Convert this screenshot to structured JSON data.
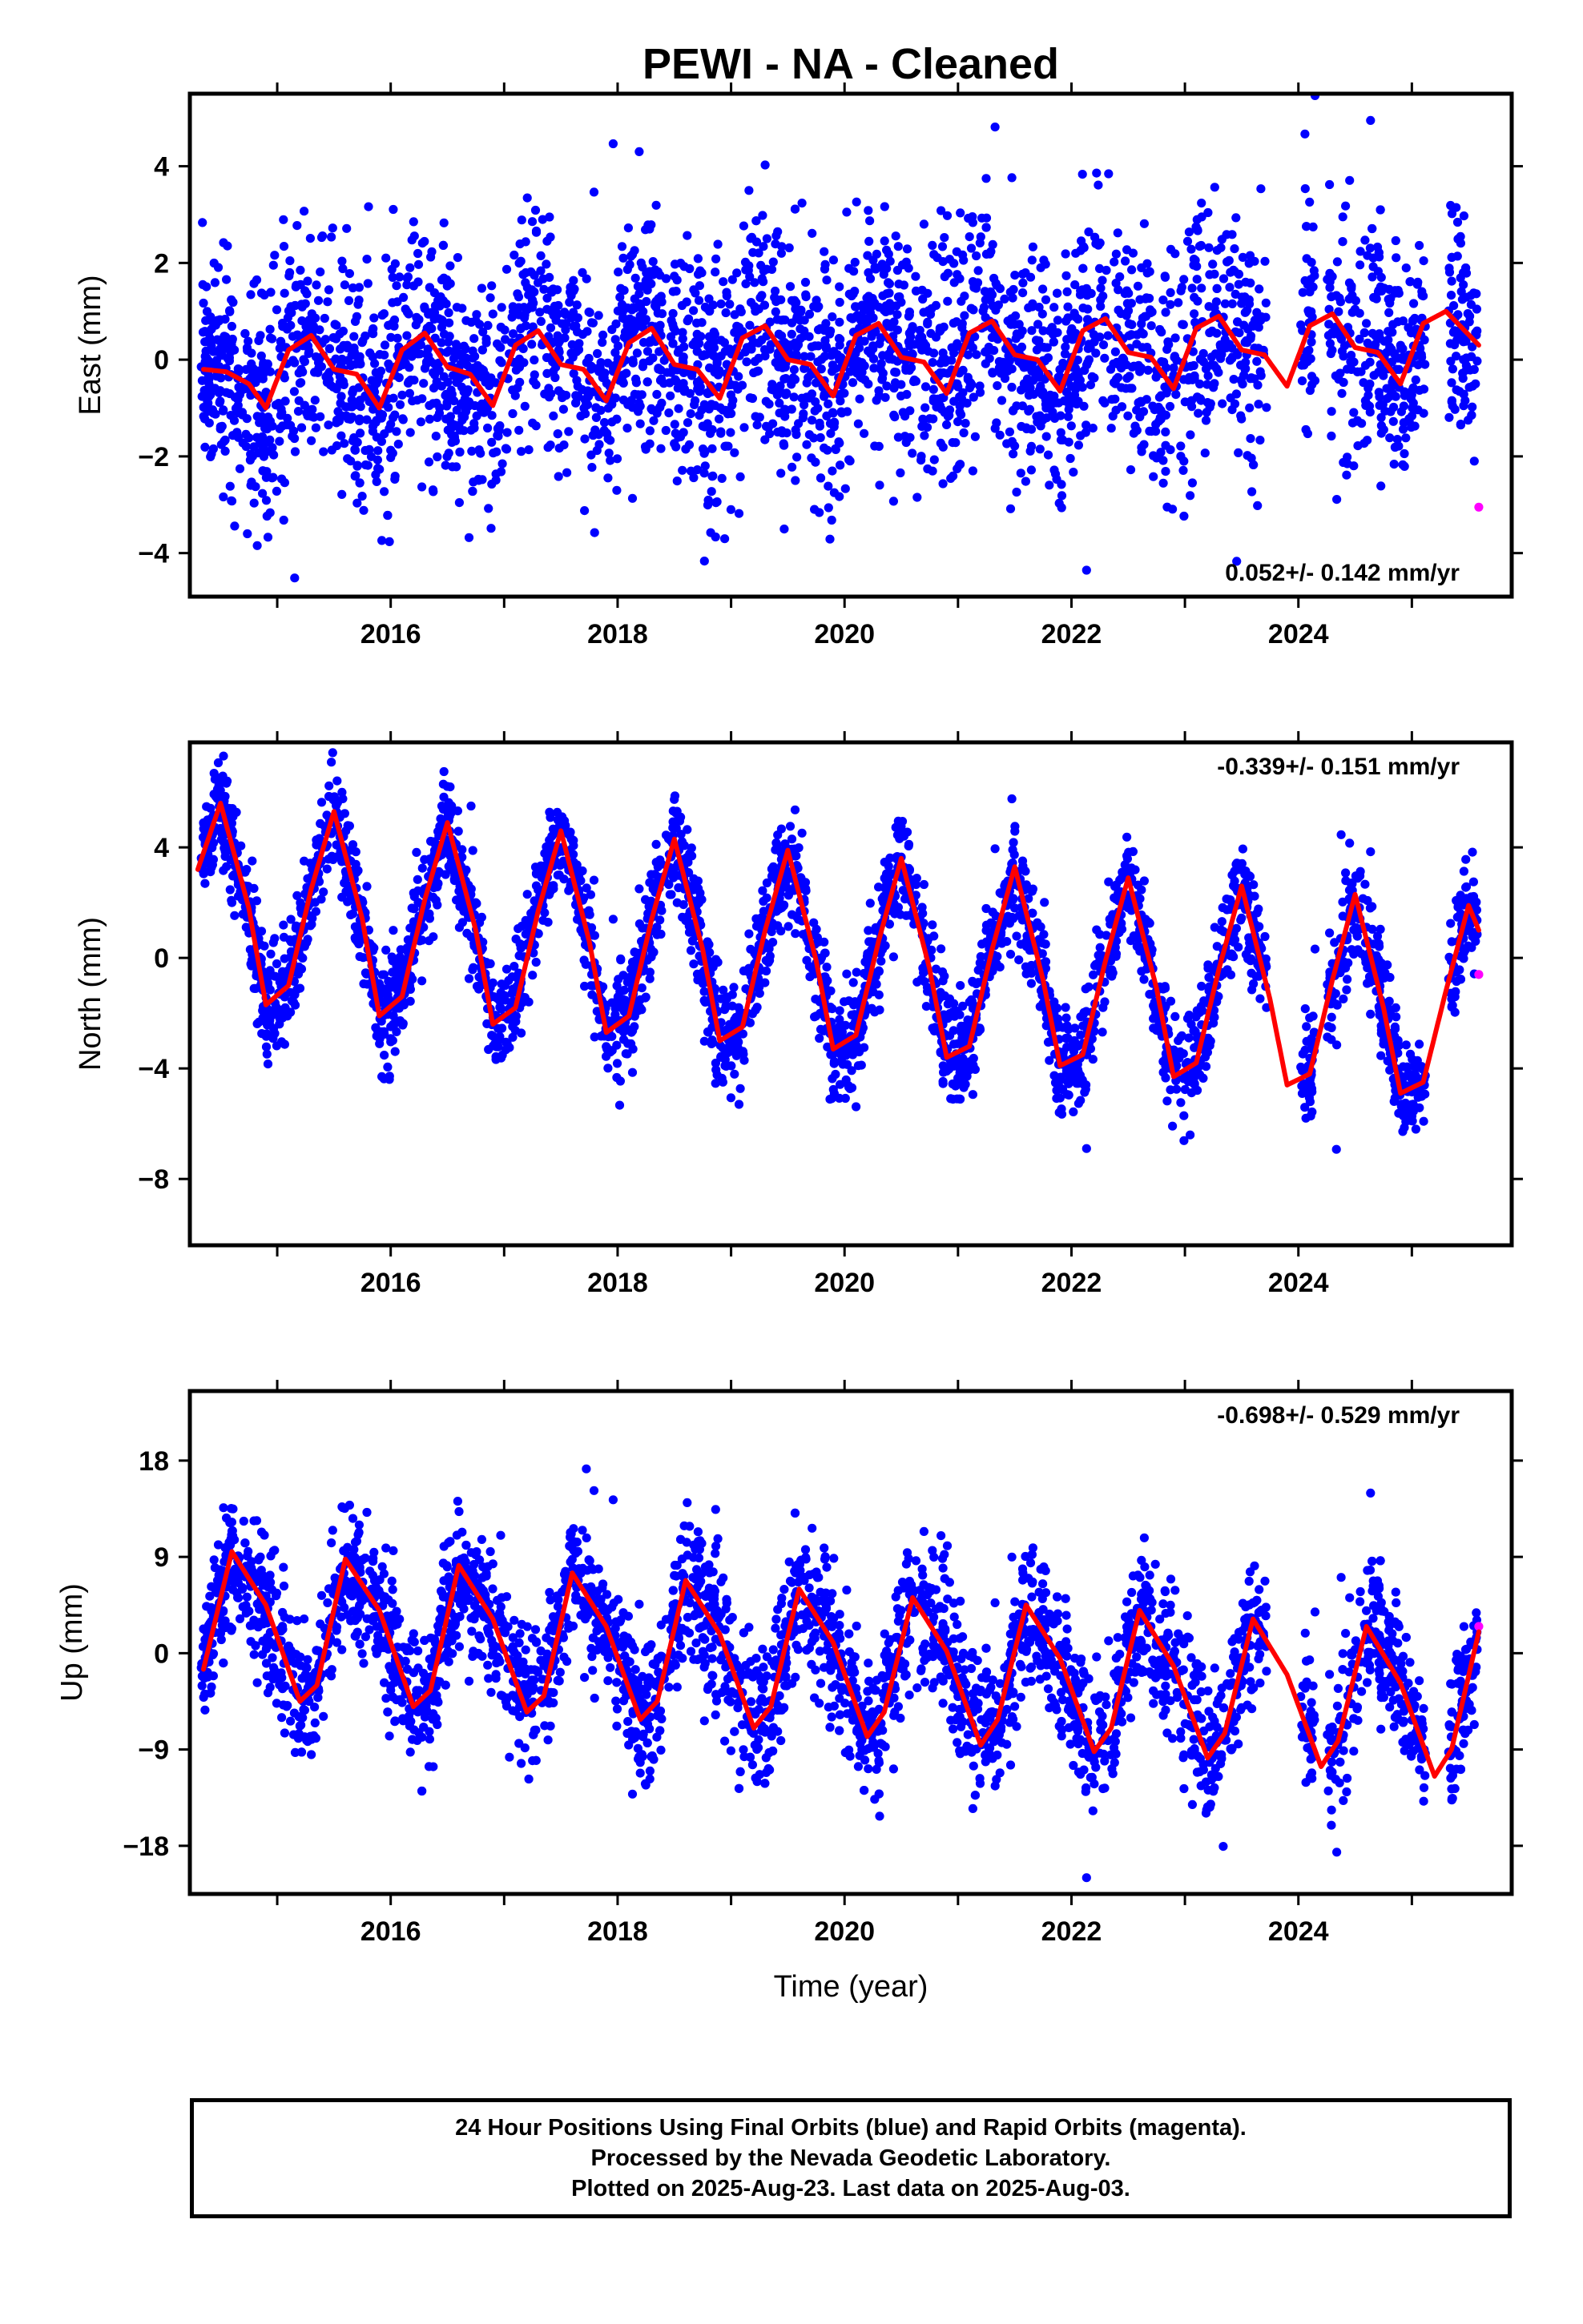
{
  "title": "PEWI  - NA - Cleaned",
  "colors": {
    "final_orbits": "#0000ff",
    "rapid_orbits": "#ff00ff",
    "model_fit": "#ff0000",
    "frame": "#000000"
  },
  "x_axis": {
    "label": "Time (year)",
    "range": [
      2014.23,
      2025.88
    ],
    "major_ticks": [
      2016,
      2018,
      2020,
      2022,
      2024
    ],
    "minor_ticks": [
      2015,
      2016,
      2017,
      2018,
      2019,
      2020,
      2021,
      2022,
      2023,
      2024,
      2025
    ]
  },
  "chart_data": [
    {
      "type": "scatter",
      "component": "east",
      "ylabel": "East (mm)",
      "ylim": [
        -4.9,
        5.5
      ],
      "yticks": [
        -4,
        -2,
        0,
        2,
        4
      ],
      "rate_label": "0.052+/- 0.142 mm/yr",
      "rate_position": "bottom-right",
      "series": [
        {
          "name": "Final Orbits",
          "style": "points",
          "noise_sd": 1.2,
          "n": 3600
        },
        {
          "name": "Rapid Orbits",
          "style": "points",
          "points": [
            [
              2025.59,
              -3.05
            ]
          ]
        },
        {
          "name": "Model fit",
          "style": "line",
          "x": [
            2014.35,
            2014.55,
            2014.75,
            2014.9,
            2015.1,
            2015.3,
            2015.5,
            2015.7,
            2015.9,
            2016.1,
            2016.3,
            2016.5,
            2016.7,
            2016.9,
            2017.1,
            2017.3,
            2017.5,
            2017.7,
            2017.9,
            2018.1,
            2018.3,
            2018.5,
            2018.7,
            2018.9,
            2019.1,
            2019.3,
            2019.5,
            2019.7,
            2019.9,
            2020.1,
            2020.3,
            2020.5,
            2020.7,
            2020.9,
            2021.1,
            2021.3,
            2021.5,
            2021.7,
            2021.9,
            2022.1,
            2022.3,
            2022.5,
            2022.7,
            2022.9,
            2023.1,
            2023.3,
            2023.5,
            2023.7,
            2023.9,
            2024.1,
            2024.3,
            2024.5,
            2024.7,
            2024.9,
            2025.1,
            2025.3,
            2025.59
          ],
          "y": [
            -0.2,
            -0.25,
            -0.5,
            -1.0,
            0.2,
            0.5,
            -0.2,
            -0.3,
            -1.0,
            0.2,
            0.55,
            -0.15,
            -0.3,
            -0.95,
            0.3,
            0.6,
            -0.1,
            -0.2,
            -0.85,
            0.35,
            0.65,
            -0.1,
            -0.2,
            -0.8,
            0.45,
            0.7,
            0.0,
            -0.1,
            -0.75,
            0.5,
            0.75,
            0.05,
            -0.05,
            -0.7,
            0.55,
            0.8,
            0.1,
            0.0,
            -0.65,
            0.6,
            0.85,
            0.15,
            0.05,
            -0.6,
            0.65,
            0.9,
            0.2,
            0.1,
            -0.55,
            0.7,
            0.95,
            0.25,
            0.15,
            -0.5,
            0.75,
            1.0,
            0.3
          ]
        }
      ]
    },
    {
      "type": "scatter",
      "component": "north",
      "ylabel": "North (mm)",
      "ylim": [
        -10.4,
        7.8
      ],
      "yticks": [
        -8,
        -4,
        0,
        4
      ],
      "rate_label": "-0.339+/- 0.151 mm/yr",
      "rate_position": "top-right",
      "series": [
        {
          "name": "Final Orbits",
          "style": "points",
          "noise_sd": 0.95,
          "n": 3600
        },
        {
          "name": "Rapid Orbits",
          "style": "points",
          "points": [
            [
              2025.59,
              -0.6
            ]
          ]
        },
        {
          "name": "Model fit",
          "style": "line",
          "x": [
            2014.3,
            2014.5,
            2014.75,
            2014.9,
            2015.1,
            2015.3,
            2015.5,
            2015.75,
            2015.9,
            2016.1,
            2016.3,
            2016.5,
            2016.75,
            2016.9,
            2017.1,
            2017.3,
            2017.5,
            2017.75,
            2017.9,
            2018.1,
            2018.3,
            2018.5,
            2018.75,
            2018.9,
            2019.1,
            2019.3,
            2019.5,
            2019.75,
            2019.9,
            2020.1,
            2020.3,
            2020.5,
            2020.75,
            2020.9,
            2021.1,
            2021.3,
            2021.5,
            2021.75,
            2021.9,
            2022.1,
            2022.3,
            2022.5,
            2022.75,
            2022.9,
            2023.1,
            2023.3,
            2023.5,
            2023.75,
            2023.9,
            2024.1,
            2024.3,
            2024.5,
            2024.75,
            2024.9,
            2025.1,
            2025.3,
            2025.5,
            2025.59
          ],
          "y": [
            3.2,
            5.6,
            1.8,
            -1.7,
            -1.0,
            2.5,
            5.3,
            1.4,
            -2.1,
            -1.4,
            2.1,
            4.9,
            1.0,
            -2.4,
            -1.8,
            1.7,
            4.6,
            0.6,
            -2.7,
            -2.1,
            1.4,
            4.3,
            0.3,
            -3.0,
            -2.5,
            1.0,
            3.9,
            -0.1,
            -3.3,
            -2.8,
            0.6,
            3.6,
            -0.4,
            -3.6,
            -3.2,
            0.3,
            3.3,
            -0.8,
            -3.9,
            -3.5,
            -0.1,
            2.9,
            -1.1,
            -4.3,
            -3.8,
            -0.4,
            2.6,
            -1.5,
            -4.6,
            -4.2,
            -0.8,
            2.3,
            -1.8,
            -4.9,
            -4.5,
            -1.2,
            1.9,
            1.0
          ]
        }
      ]
    },
    {
      "type": "scatter",
      "component": "up",
      "ylabel": "Up (mm)",
      "ylim": [
        -22.5,
        24.5
      ],
      "yticks": [
        -18,
        -9,
        0,
        9,
        18
      ],
      "rate_label": "-0.698+/- 0.529 mm/yr",
      "rate_position": "top-right",
      "series": [
        {
          "name": "Final Orbits",
          "style": "points",
          "noise_sd": 3.3,
          "n": 3600
        },
        {
          "name": "Rapid Orbits",
          "style": "points",
          "points": [
            [
              2025.59,
              2.5
            ]
          ]
        },
        {
          "name": "Model fit",
          "style": "line",
          "x": [
            2014.35,
            2014.6,
            2014.9,
            2015.2,
            2015.35,
            2015.6,
            2015.9,
            2016.2,
            2016.35,
            2016.6,
            2016.9,
            2017.2,
            2017.35,
            2017.6,
            2017.9,
            2018.2,
            2018.35,
            2018.6,
            2018.9,
            2019.2,
            2019.35,
            2019.6,
            2019.9,
            2020.2,
            2020.35,
            2020.6,
            2020.9,
            2021.2,
            2021.35,
            2021.6,
            2021.9,
            2022.2,
            2022.35,
            2022.6,
            2022.9,
            2023.2,
            2023.35,
            2023.6,
            2023.9,
            2024.2,
            2024.35,
            2024.6,
            2024.9,
            2025.2,
            2025.35,
            2025.59
          ],
          "y": [
            -1.5,
            9.5,
            4.5,
            -4.5,
            -3.0,
            8.8,
            4.0,
            -5.0,
            -3.5,
            8.2,
            3.2,
            -5.5,
            -4.0,
            7.5,
            2.5,
            -6.2,
            -4.5,
            6.8,
            1.8,
            -7.0,
            -5.0,
            6.0,
            1.0,
            -7.8,
            -5.5,
            5.2,
            0.2,
            -8.6,
            -6.2,
            4.5,
            -0.5,
            -9.2,
            -7.0,
            4.0,
            -1.2,
            -9.8,
            -7.5,
            3.2,
            -2.0,
            -10.6,
            -8.2,
            2.5,
            -2.8,
            -11.5,
            -9.0,
            2.0
          ]
        }
      ]
    }
  ],
  "footer": {
    "line1": "24 Hour Positions Using Final Orbits (blue) and Rapid Orbits (magenta).",
    "line2": "Processed by the Nevada Geodetic Laboratory.",
    "line3": "Plotted on 2025-Aug-23. Last data on 2025-Aug-03."
  }
}
